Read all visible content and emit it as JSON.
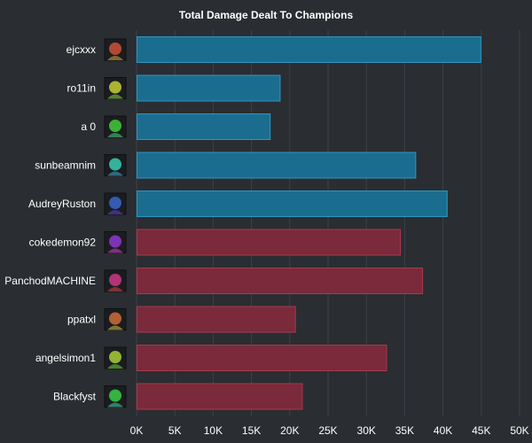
{
  "chart_data": {
    "type": "bar",
    "orientation": "horizontal",
    "title": "Total Damage Dealt To Champions",
    "xlabel": "",
    "ylabel": "",
    "xlim": [
      0,
      50000
    ],
    "x_ticks": [
      0,
      5000,
      10000,
      15000,
      20000,
      25000,
      30000,
      35000,
      40000,
      45000,
      50000
    ],
    "x_tick_labels": [
      "0K",
      "5K",
      "10K",
      "15K",
      "20K",
      "25K",
      "30K",
      "35K",
      "40K",
      "45K",
      "50K"
    ],
    "grid": "vertical",
    "legend": "none",
    "team_colors": {
      "blue": "#1b6d8f",
      "red": "#7a2a3a"
    },
    "categories": [
      "ejcxxx",
      "ro11in",
      "a 0",
      "sunbeamnim",
      "AudreyRuston",
      "cokedemon92",
      "PanchodMACHINE",
      "ppatxl",
      "angelsimon1",
      "Blackfyst"
    ],
    "values": [
      45000,
      18800,
      17500,
      36500,
      40600,
      34500,
      37400,
      20800,
      32700,
      21700
    ],
    "teams": [
      "blue",
      "blue",
      "blue",
      "blue",
      "blue",
      "red",
      "red",
      "red",
      "red",
      "red"
    ],
    "icons": [
      "champion-portrait-icon",
      "champion-portrait-icon",
      "champion-portrait-icon",
      "champion-portrait-icon",
      "champion-portrait-icon",
      "champion-portrait-icon",
      "champion-portrait-icon",
      "champion-portrait-icon",
      "champion-portrait-icon",
      "champion-portrait-icon"
    ]
  }
}
